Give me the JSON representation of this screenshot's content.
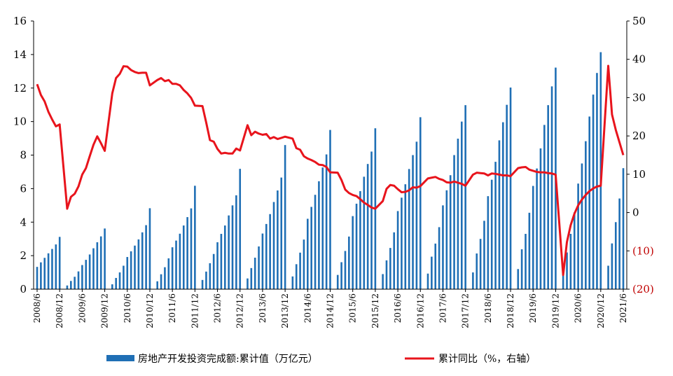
{
  "chart_data": {
    "type": "bar+line",
    "title": "",
    "x_tick_labels": [
      "2008/6",
      "2008/12",
      "2009/6",
      "2009/12",
      "2010/6",
      "2010/12",
      "2011/6",
      "2011/12",
      "2012/6",
      "2012/12",
      "2013/6",
      "2013/12",
      "2014/6",
      "2014/12",
      "2015/6",
      "2015/12",
      "2016/6",
      "2016/12",
      "2017/6",
      "2017/12",
      "2018/6",
      "2018/12",
      "2019/6",
      "2019/12",
      "2020/6",
      "2020/12",
      "2021/6"
    ],
    "y_left": {
      "min": 0,
      "max": 16,
      "ticks": [
        "0",
        "2",
        "4",
        "6",
        "8",
        "10",
        "12",
        "14",
        "16"
      ]
    },
    "y_right": {
      "min": -20,
      "max": 50,
      "ticks": [
        "(20)",
        "(10)",
        "0",
        "10",
        "20",
        "30",
        "40",
        "50"
      ]
    },
    "grid": false,
    "legend_position": "bottom",
    "series": [
      {
        "name": "房地产开发投资完成额:累计值（万亿元）",
        "type": "bar",
        "axis": "left",
        "color": "#1f6fb5",
        "x": [
          "2008-06",
          "2008-07",
          "2008-08",
          "2008-09",
          "2008-10",
          "2008-11",
          "2008-12",
          "2009-02",
          "2009-03",
          "2009-04",
          "2009-05",
          "2009-06",
          "2009-07",
          "2009-08",
          "2009-09",
          "2009-10",
          "2009-11",
          "2009-12",
          "2010-02",
          "2010-03",
          "2010-04",
          "2010-05",
          "2010-06",
          "2010-07",
          "2010-08",
          "2010-09",
          "2010-10",
          "2010-11",
          "2010-12",
          "2011-02",
          "2011-03",
          "2011-04",
          "2011-05",
          "2011-06",
          "2011-07",
          "2011-08",
          "2011-09",
          "2011-10",
          "2011-11",
          "2011-12",
          "2012-02",
          "2012-03",
          "2012-04",
          "2012-05",
          "2012-06",
          "2012-07",
          "2012-08",
          "2012-09",
          "2012-10",
          "2012-11",
          "2012-12",
          "2013-02",
          "2013-03",
          "2013-04",
          "2013-05",
          "2013-06",
          "2013-07",
          "2013-08",
          "2013-09",
          "2013-10",
          "2013-11",
          "2013-12",
          "2014-02",
          "2014-03",
          "2014-04",
          "2014-05",
          "2014-06",
          "2014-07",
          "2014-08",
          "2014-09",
          "2014-10",
          "2014-11",
          "2014-12",
          "2015-02",
          "2015-03",
          "2015-04",
          "2015-05",
          "2015-06",
          "2015-07",
          "2015-08",
          "2015-09",
          "2015-10",
          "2015-11",
          "2015-12",
          "2016-02",
          "2016-03",
          "2016-04",
          "2016-05",
          "2016-06",
          "2016-07",
          "2016-08",
          "2016-09",
          "2016-10",
          "2016-11",
          "2016-12",
          "2017-02",
          "2017-03",
          "2017-04",
          "2017-05",
          "2017-06",
          "2017-07",
          "2017-08",
          "2017-09",
          "2017-10",
          "2017-11",
          "2017-12",
          "2018-02",
          "2018-03",
          "2018-04",
          "2018-05",
          "2018-06",
          "2018-07",
          "2018-08",
          "2018-09",
          "2018-10",
          "2018-11",
          "2018-12",
          "2019-02",
          "2019-03",
          "2019-04",
          "2019-05",
          "2019-06",
          "2019-07",
          "2019-08",
          "2019-09",
          "2019-10",
          "2019-11",
          "2019-12",
          "2020-02",
          "2020-03",
          "2020-04",
          "2020-05",
          "2020-06",
          "2020-07",
          "2020-08",
          "2020-09",
          "2020-10",
          "2020-11",
          "2020-12",
          "2021-02",
          "2021-03",
          "2021-04",
          "2021-05",
          "2021-06"
        ],
        "values": [
          1.33,
          1.6,
          1.87,
          2.14,
          2.4,
          2.67,
          3.12,
          0.22,
          0.49,
          0.74,
          1.06,
          1.44,
          1.75,
          2.07,
          2.44,
          2.8,
          3.15,
          3.62,
          0.29,
          0.67,
          1.0,
          1.4,
          1.92,
          2.26,
          2.6,
          2.97,
          3.39,
          3.82,
          4.83,
          0.47,
          0.89,
          1.31,
          1.84,
          2.5,
          2.9,
          3.31,
          3.8,
          4.3,
          4.82,
          6.17,
          0.55,
          1.05,
          1.55,
          2.1,
          2.8,
          3.3,
          3.8,
          4.4,
          5.0,
          5.6,
          7.18,
          0.64,
          1.26,
          1.88,
          2.55,
          3.32,
          3.89,
          4.48,
          5.2,
          5.89,
          6.66,
          8.6,
          0.76,
          1.49,
          2.18,
          2.96,
          4.2,
          4.91,
          5.63,
          6.44,
          7.26,
          8.04,
          9.5,
          0.85,
          1.61,
          2.28,
          3.14,
          4.36,
          5.1,
          5.85,
          6.71,
          7.47,
          8.21,
          9.6,
          0.9,
          1.72,
          2.46,
          3.39,
          4.66,
          5.46,
          6.26,
          7.17,
          8.0,
          8.8,
          10.26,
          0.93,
          1.94,
          2.72,
          3.7,
          5.0,
          5.9,
          6.8,
          8.0,
          8.98,
          10.0,
          10.98,
          1.0,
          2.13,
          3.0,
          4.08,
          5.55,
          6.53,
          7.6,
          8.88,
          9.96,
          11.0,
          12.03,
          1.2,
          2.38,
          3.3,
          4.56,
          6.16,
          7.2,
          8.4,
          9.8,
          10.98,
          12.1,
          13.22,
          1.01,
          2.19,
          3.3,
          4.58,
          6.3,
          7.5,
          8.83,
          10.3,
          11.61,
          12.9,
          14.14,
          1.4,
          2.73,
          4.0,
          5.41,
          7.22
        ]
      },
      {
        "name": "累计同比（%，右轴）",
        "type": "line",
        "axis": "right",
        "color": "#e8141c",
        "x": [
          "2008-06",
          "2008-07",
          "2008-08",
          "2008-09",
          "2008-10",
          "2008-11",
          "2008-12",
          "2009-02",
          "2009-03",
          "2009-04",
          "2009-05",
          "2009-06",
          "2009-07",
          "2009-08",
          "2009-09",
          "2009-10",
          "2009-11",
          "2009-12",
          "2010-02",
          "2010-03",
          "2010-04",
          "2010-05",
          "2010-06",
          "2010-07",
          "2010-08",
          "2010-09",
          "2010-10",
          "2010-11",
          "2010-12",
          "2011-02",
          "2011-03",
          "2011-04",
          "2011-05",
          "2011-06",
          "2011-07",
          "2011-08",
          "2011-09",
          "2011-10",
          "2011-11",
          "2011-12",
          "2012-02",
          "2012-03",
          "2012-04",
          "2012-05",
          "2012-06",
          "2012-07",
          "2012-08",
          "2012-09",
          "2012-10",
          "2012-11",
          "2012-12",
          "2013-02",
          "2013-03",
          "2013-04",
          "2013-05",
          "2013-06",
          "2013-07",
          "2013-08",
          "2013-09",
          "2013-10",
          "2013-11",
          "2013-12",
          "2014-02",
          "2014-03",
          "2014-04",
          "2014-05",
          "2014-06",
          "2014-07",
          "2014-08",
          "2014-09",
          "2014-10",
          "2014-11",
          "2014-12",
          "2015-02",
          "2015-03",
          "2015-04",
          "2015-05",
          "2015-06",
          "2015-07",
          "2015-08",
          "2015-09",
          "2015-10",
          "2015-11",
          "2015-12",
          "2016-02",
          "2016-03",
          "2016-04",
          "2016-05",
          "2016-06",
          "2016-07",
          "2016-08",
          "2016-09",
          "2016-10",
          "2016-11",
          "2016-12",
          "2017-02",
          "2017-03",
          "2017-04",
          "2017-05",
          "2017-06",
          "2017-07",
          "2017-08",
          "2017-09",
          "2017-10",
          "2017-11",
          "2017-12",
          "2018-02",
          "2018-03",
          "2018-04",
          "2018-05",
          "2018-06",
          "2018-07",
          "2018-08",
          "2018-09",
          "2018-10",
          "2018-11",
          "2018-12",
          "2019-02",
          "2019-03",
          "2019-04",
          "2019-05",
          "2019-06",
          "2019-07",
          "2019-08",
          "2019-09",
          "2019-10",
          "2019-11",
          "2019-12",
          "2020-02",
          "2020-03",
          "2020-04",
          "2020-05",
          "2020-06",
          "2020-07",
          "2020-08",
          "2020-09",
          "2020-10",
          "2020-11",
          "2020-12",
          "2021-02",
          "2021-03",
          "2021-04",
          "2021-05",
          "2021-06"
        ],
        "values": [
          33.5,
          30.7,
          29.0,
          26.3,
          24.3,
          22.5,
          23.0,
          1.0,
          4.1,
          4.9,
          6.8,
          9.9,
          11.6,
          14.7,
          17.7,
          19.9,
          18.1,
          16.1,
          31.1,
          35.1,
          36.2,
          38.2,
          38.1,
          37.2,
          36.7,
          36.4,
          36.5,
          36.5,
          33.2,
          34.6,
          35.1,
          34.3,
          34.6,
          33.6,
          33.6,
          33.2,
          32.0,
          31.1,
          29.9,
          27.9,
          27.8,
          23.5,
          18.9,
          18.5,
          16.6,
          15.4,
          15.6,
          15.4,
          15.4,
          16.7,
          16.2,
          22.8,
          20.2,
          21.1,
          20.6,
          20.3,
          20.5,
          19.3,
          19.7,
          19.2,
          19.5,
          19.8,
          19.3,
          16.8,
          16.4,
          14.7,
          14.1,
          13.7,
          13.2,
          12.5,
          12.4,
          11.9,
          10.5,
          10.4,
          8.5,
          6.0,
          5.1,
          4.6,
          4.3,
          3.5,
          2.6,
          2.0,
          1.3,
          1.0,
          3.0,
          6.2,
          7.2,
          7.0,
          6.1,
          5.3,
          5.4,
          5.8,
          6.6,
          6.5,
          6.9,
          8.9,
          9.1,
          9.3,
          8.8,
          8.5,
          7.9,
          7.8,
          8.1,
          7.8,
          7.5,
          7.0,
          9.9,
          10.4,
          10.3,
          10.2,
          9.7,
          10.2,
          10.1,
          9.9,
          9.7,
          9.7,
          9.5,
          11.6,
          11.8,
          11.9,
          11.2,
          10.9,
          10.6,
          10.5,
          10.5,
          10.3,
          10.2,
          9.9,
          -16.3,
          -7.7,
          -3.3,
          -0.3,
          1.9,
          3.4,
          4.6,
          5.6,
          6.3,
          6.8,
          7.0,
          38.3,
          25.6,
          21.6,
          18.3,
          15.0
        ]
      }
    ]
  }
}
